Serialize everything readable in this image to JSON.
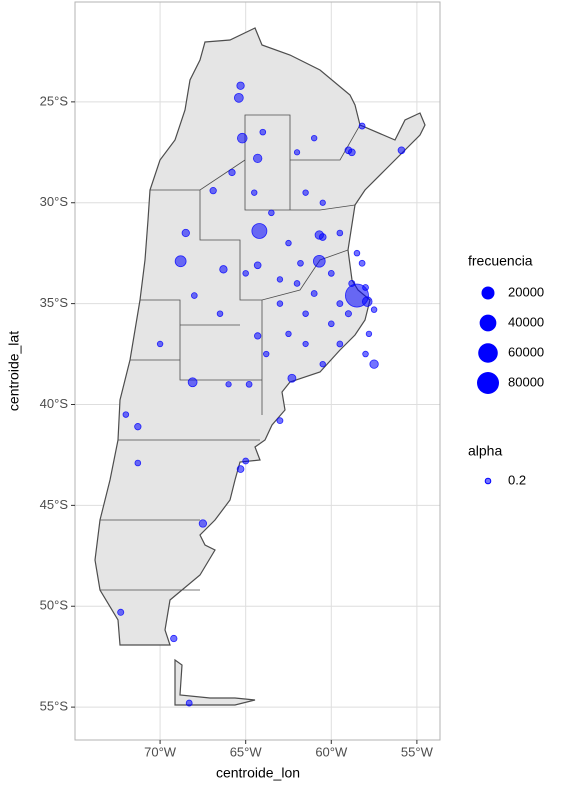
{
  "chart_data": {
    "type": "scatter",
    "x_label": "centroide_lon",
    "y_label": "centroide_lat",
    "xlim": [
      -74.97,
      -53.65
    ],
    "ylim": [
      -56.63,
      -20.05
    ],
    "xticks": [
      {
        "value": -70,
        "label": "70°W"
      },
      {
        "value": -65,
        "label": "65°W"
      },
      {
        "value": -60,
        "label": "60°W"
      },
      {
        "value": -55,
        "label": "55°W"
      }
    ],
    "yticks": [
      {
        "value": -25,
        "label": "25°S"
      },
      {
        "value": -30,
        "label": "30°S"
      },
      {
        "value": -35,
        "label": "35°S"
      },
      {
        "value": -40,
        "label": "40°S"
      },
      {
        "value": -45,
        "label": "45°S"
      },
      {
        "value": -50,
        "label": "50°S"
      },
      {
        "value": -55,
        "label": "55°S"
      }
    ],
    "grid": true,
    "color": "#0000ff",
    "x": [
      -58.5,
      -64.2,
      -60.7,
      -68.8,
      -65.2,
      -65.4,
      -65.3,
      -60.7,
      -57.9,
      -57.5,
      -62.3,
      -68.1,
      -68.5,
      -58.8,
      -59.0,
      -55.9,
      -64.3,
      -65.8,
      -66.9,
      -66.3,
      -64.3,
      -60.5,
      -67.5,
      -65.3,
      -71.3,
      -69.2,
      -68.3,
      -58.2,
      -64.3,
      -63.0,
      -65.0,
      -72.3,
      -71.3,
      -60.0,
      -61.5,
      -62.5,
      -59.5,
      -58.0,
      -60.5,
      -61.0,
      -62.0,
      -59.0,
      -57.8,
      -63.0,
      -60.0,
      -61.8,
      -62.5,
      -63.5,
      -61.5,
      -60.5,
      -59.5,
      -58.5,
      -58.2,
      -63.0,
      -65.0,
      -64.5,
      -64.0,
      -62.0,
      -61.0,
      -66.5,
      -68.0,
      -70.0,
      -66.0,
      -64.8,
      -72.0,
      -59.5,
      -58.8,
      -58.0,
      -57.5,
      -63.8,
      -61.5
    ],
    "y": [
      -34.6,
      -31.4,
      -32.9,
      -32.9,
      -26.8,
      -24.8,
      -24.2,
      -31.6,
      -34.9,
      -38.0,
      -38.7,
      -38.9,
      -31.5,
      -27.5,
      -27.4,
      -27.4,
      -27.8,
      -28.5,
      -29.4,
      -33.3,
      -33.1,
      -31.7,
      -45.9,
      -43.2,
      -41.1,
      -51.6,
      -54.8,
      -26.2,
      -36.6,
      -40.8,
      -42.8,
      -50.3,
      -42.9,
      -36.0,
      -35.5,
      -36.5,
      -37.0,
      -37.5,
      -38.0,
      -34.5,
      -34.0,
      -35.5,
      -36.5,
      -35.0,
      -33.5,
      -33.0,
      -32.0,
      -30.5,
      -29.5,
      -30.0,
      -31.5,
      -32.5,
      -33.0,
      -33.8,
      -33.5,
      -29.5,
      -26.5,
      -27.5,
      -26.8,
      -35.5,
      -34.6,
      -37.0,
      -39.0,
      -39.0,
      -40.5,
      -35.0,
      -34.0,
      -34.2,
      -35.3,
      -37.5,
      -37.0
    ],
    "sizes": [
      90000,
      30000,
      15000,
      12000,
      8000,
      6000,
      3000,
      5000,
      8000,
      5000,
      4000,
      6000,
      3000,
      2000,
      2000,
      2000,
      5000,
      1500,
      1500,
      3000,
      2000,
      2000,
      3000,
      2000,
      1500,
      1500,
      1000,
      1000,
      1500,
      1000,
      1000,
      1200,
      800,
      800,
      700,
      600,
      900,
      700,
      600,
      1000,
      800,
      1200,
      600,
      700,
      900,
      800,
      600,
      700,
      600,
      500,
      800,
      700,
      900,
      600,
      700,
      600,
      800,
      500,
      600,
      700,
      800,
      600,
      500,
      900,
      700,
      1000,
      1200,
      900,
      700,
      600,
      500
    ],
    "size_legend": {
      "title": "frecuencia",
      "values": [
        20000,
        40000,
        60000,
        80000
      ]
    },
    "alpha_legend": {
      "title": "alpha",
      "value": 0.2
    }
  }
}
